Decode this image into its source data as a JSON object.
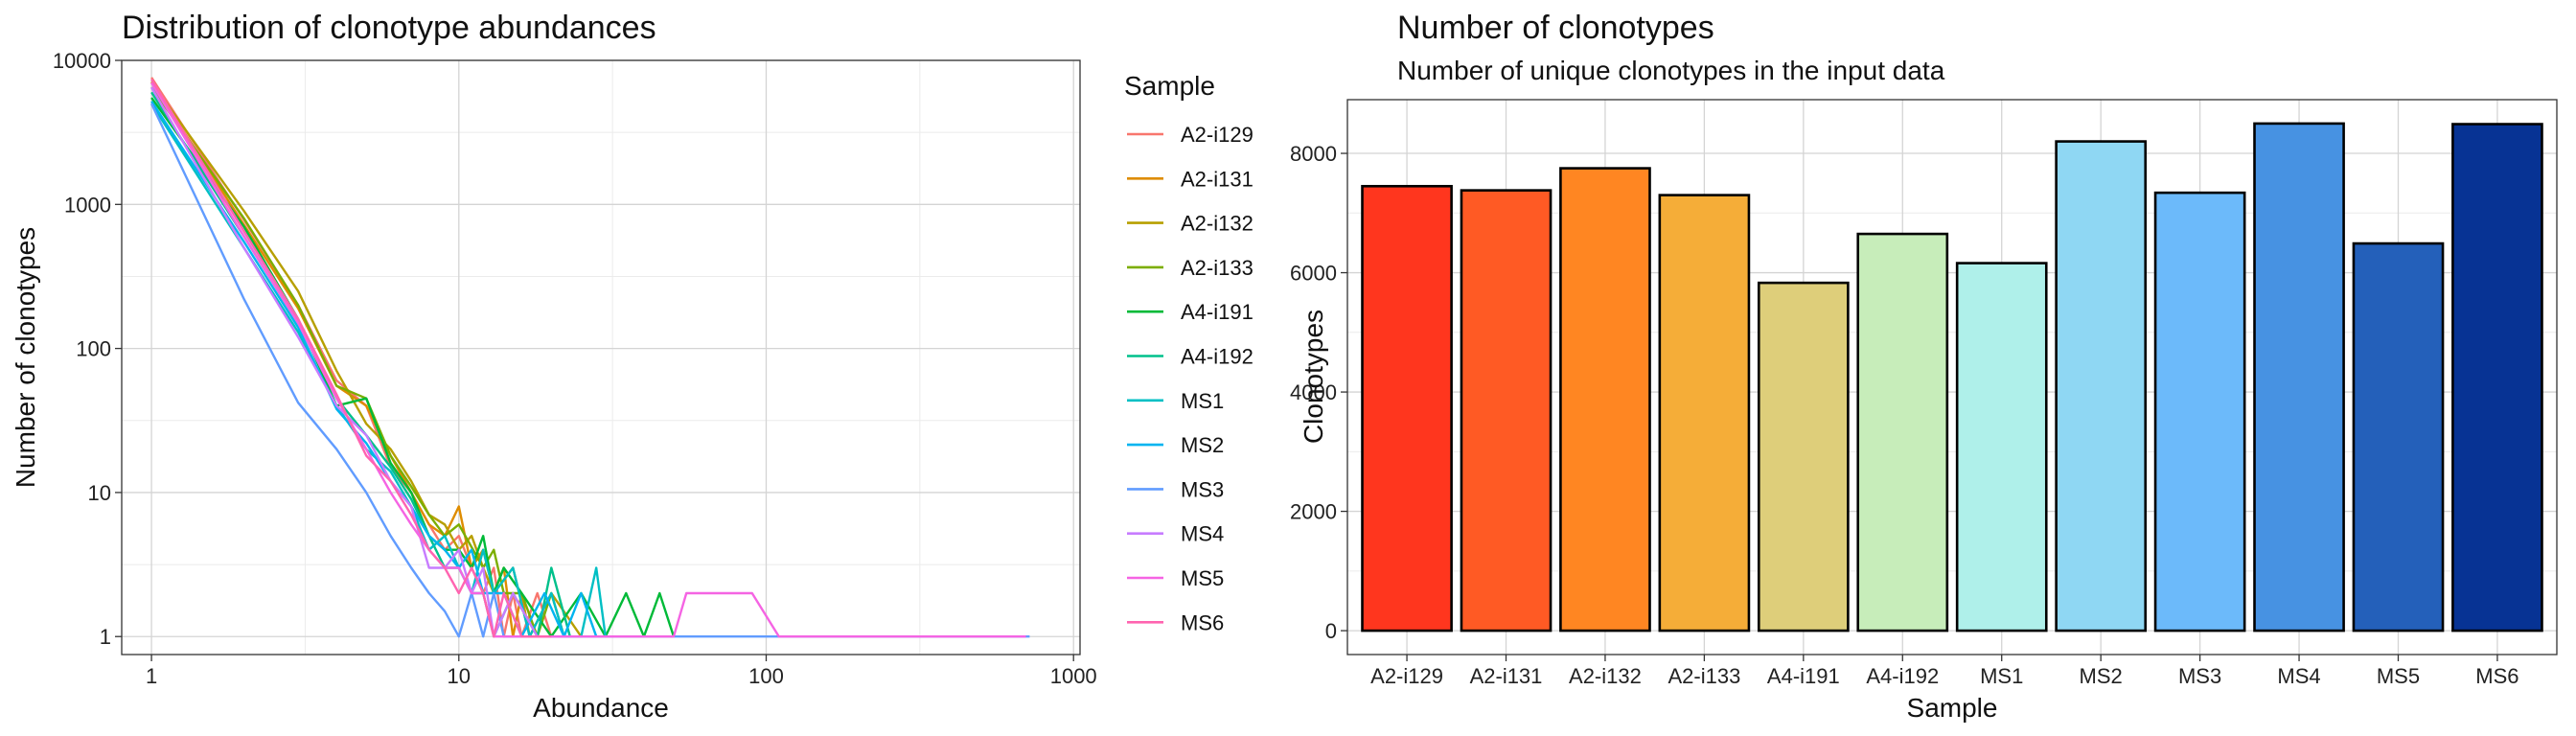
{
  "chart_data": [
    {
      "type": "line",
      "title": "Distribution of clonotype abundances",
      "xlabel": "Abundance",
      "ylabel": "Number of clonotypes",
      "x_scale": "log10",
      "y_scale": "log10",
      "xlim": [
        0.8,
        1050
      ],
      "ylim": [
        0.75,
        10000
      ],
      "x_ticks": [
        "1",
        "10",
        "100",
        "1000"
      ],
      "y_ticks": [
        "1",
        "10",
        "100",
        "1000",
        "10000"
      ],
      "grid": true,
      "legend": {
        "title": "Sample",
        "position": "right"
      },
      "series": [
        {
          "name": "A2-i129",
          "color": "#F8766D",
          "points": [
            [
              1,
              7600
            ],
            [
              2,
              780
            ],
            [
              3,
              200
            ],
            [
              4,
              60
            ],
            [
              5,
              40
            ],
            [
              6,
              15
            ],
            [
              7,
              10
            ],
            [
              8,
              6
            ],
            [
              9,
              4
            ],
            [
              10,
              5
            ],
            [
              11,
              3
            ],
            [
              12,
              2
            ],
            [
              13,
              3
            ],
            [
              14,
              1
            ],
            [
              15,
              2
            ],
            [
              16,
              1
            ],
            [
              18,
              2
            ],
            [
              20,
              1
            ],
            [
              22,
              1
            ]
          ]
        },
        {
          "name": "A2-i131",
          "color": "#DE8C00",
          "points": [
            [
              1,
              7100
            ],
            [
              2,
              720
            ],
            [
              3,
              190
            ],
            [
              4,
              55
            ],
            [
              5,
              40
            ],
            [
              6,
              18
            ],
            [
              7,
              10
            ],
            [
              8,
              6
            ],
            [
              9,
              5
            ],
            [
              10,
              8
            ],
            [
              11,
              3
            ],
            [
              12,
              4
            ],
            [
              13,
              2
            ],
            [
              14,
              3
            ],
            [
              15,
              1
            ],
            [
              16,
              2
            ],
            [
              17,
              1
            ],
            [
              18,
              1
            ]
          ]
        },
        {
          "name": "A2-i132",
          "color": "#B79F00",
          "points": [
            [
              1,
              7000
            ],
            [
              2,
              900
            ],
            [
              3,
              250
            ],
            [
              4,
              70
            ],
            [
              5,
              30
            ],
            [
              6,
              20
            ],
            [
              7,
              12
            ],
            [
              8,
              7
            ],
            [
              9,
              6
            ],
            [
              10,
              4
            ],
            [
              11,
              5
            ],
            [
              12,
              3
            ],
            [
              13,
              2
            ],
            [
              15,
              3
            ],
            [
              17,
              1
            ],
            [
              20,
              2
            ],
            [
              25,
              1
            ]
          ]
        },
        {
          "name": "A2-i133",
          "color": "#7CAE00",
          "points": [
            [
              1,
              6500
            ],
            [
              2,
              800
            ],
            [
              3,
              200
            ],
            [
              4,
              55
            ],
            [
              5,
              45
            ],
            [
              6,
              18
            ],
            [
              7,
              11
            ],
            [
              8,
              7
            ],
            [
              9,
              5
            ],
            [
              10,
              6
            ],
            [
              12,
              3
            ],
            [
              13,
              4
            ],
            [
              14,
              2
            ],
            [
              16,
              2
            ],
            [
              18,
              1
            ],
            [
              20,
              2
            ],
            [
              22,
              1
            ]
          ]
        },
        {
          "name": "A4-i191",
          "color": "#00BA38",
          "points": [
            [
              1,
              5500
            ],
            [
              2,
              700
            ],
            [
              3,
              160
            ],
            [
              4,
              40
            ],
            [
              5,
              45
            ],
            [
              6,
              16
            ],
            [
              7,
              10
            ],
            [
              8,
              5
            ],
            [
              9,
              4
            ],
            [
              10,
              4
            ],
            [
              11,
              3
            ],
            [
              12,
              5
            ],
            [
              13,
              2
            ],
            [
              14,
              3
            ],
            [
              16,
              2
            ],
            [
              20,
              1
            ],
            [
              25,
              2
            ],
            [
              30,
              1
            ],
            [
              35,
              2
            ],
            [
              40,
              1
            ],
            [
              45,
              2
            ],
            [
              50,
              1
            ]
          ]
        },
        {
          "name": "A4-i192",
          "color": "#00C08B",
          "points": [
            [
              1,
              6000
            ],
            [
              2,
              600
            ],
            [
              3,
              150
            ],
            [
              4,
              45
            ],
            [
              5,
              25
            ],
            [
              6,
              15
            ],
            [
              7,
              9
            ],
            [
              8,
              5
            ],
            [
              9,
              3
            ],
            [
              10,
              3
            ],
            [
              11,
              2
            ],
            [
              12,
              2
            ],
            [
              13,
              1
            ],
            [
              15,
              2
            ],
            [
              18,
              1
            ],
            [
              20,
              3
            ],
            [
              23,
              1
            ]
          ]
        },
        {
          "name": "MS1",
          "color": "#00BFC4",
          "points": [
            [
              1,
              5000
            ],
            [
              2,
              500
            ],
            [
              3,
              130
            ],
            [
              4,
              40
            ],
            [
              5,
              20
            ],
            [
              6,
              14
            ],
            [
              7,
              8
            ],
            [
              8,
              4
            ],
            [
              9,
              5
            ],
            [
              10,
              3
            ],
            [
              11,
              2
            ],
            [
              12,
              4
            ],
            [
              13,
              2
            ],
            [
              15,
              3
            ],
            [
              17,
              1
            ],
            [
              20,
              2
            ],
            [
              22,
              1
            ],
            [
              25,
              1
            ],
            [
              28,
              3
            ],
            [
              30,
              1
            ]
          ]
        },
        {
          "name": "MS2",
          "color": "#00B4F0",
          "points": [
            [
              1,
              5200
            ],
            [
              2,
              550
            ],
            [
              3,
              140
            ],
            [
              4,
              38
            ],
            [
              5,
              22
            ],
            [
              6,
              12
            ],
            [
              7,
              8
            ],
            [
              8,
              5
            ],
            [
              9,
              4
            ],
            [
              10,
              3
            ],
            [
              11,
              4
            ],
            [
              12,
              2
            ],
            [
              14,
              2
            ],
            [
              16,
              1
            ],
            [
              19,
              2
            ],
            [
              22,
              1
            ],
            [
              25,
              2
            ],
            [
              28,
              1
            ]
          ]
        },
        {
          "name": "MS3",
          "color": "#619CFF",
          "points": [
            [
              1,
              5000
            ],
            [
              2,
              220
            ],
            [
              3,
              42
            ],
            [
              4,
              20
            ],
            [
              5,
              10
            ],
            [
              6,
              5
            ],
            [
              7,
              3
            ],
            [
              8,
              2
            ],
            [
              9,
              1.5
            ],
            [
              10,
              1
            ],
            [
              11,
              2
            ],
            [
              12,
              1
            ],
            [
              13,
              2
            ],
            [
              14,
              1
            ],
            [
              18,
              1
            ],
            [
              25,
              1
            ],
            [
              50,
              1
            ],
            [
              110,
              1
            ],
            [
              250,
              1
            ],
            [
              720,
              1
            ]
          ]
        },
        {
          "name": "MS4",
          "color": "#C77CFF",
          "points": [
            [
              1,
              6500
            ],
            [
              2,
              500
            ],
            [
              3,
              120
            ],
            [
              4,
              40
            ],
            [
              5,
              25
            ],
            [
              6,
              12
            ],
            [
              7,
              8
            ],
            [
              8,
              3
            ],
            [
              9,
              3
            ],
            [
              10,
              4
            ],
            [
              11,
              2
            ],
            [
              12,
              3
            ],
            [
              13,
              1
            ],
            [
              15,
              2
            ],
            [
              18,
              1
            ],
            [
              22,
              1
            ]
          ]
        },
        {
          "name": "MS5",
          "color": "#F564E3",
          "points": [
            [
              1,
              7000
            ],
            [
              2,
              600
            ],
            [
              3,
              150
            ],
            [
              4,
              45
            ],
            [
              5,
              20
            ],
            [
              6,
              10
            ],
            [
              7,
              6
            ],
            [
              8,
              4
            ],
            [
              9,
              3
            ],
            [
              10,
              3
            ],
            [
              11,
              2
            ],
            [
              12,
              2
            ],
            [
              13,
              1
            ],
            [
              15,
              1
            ],
            [
              20,
              1
            ],
            [
              30,
              1
            ],
            [
              50,
              1
            ],
            [
              55,
              2
            ],
            [
              90,
              2
            ],
            [
              110,
              1
            ],
            [
              250,
              1
            ],
            [
              700,
              1
            ]
          ]
        },
        {
          "name": "MS6",
          "color": "#FF64B0",
          "points": [
            [
              1,
              7400
            ],
            [
              2,
              650
            ],
            [
              3,
              160
            ],
            [
              4,
              48
            ],
            [
              5,
              18
            ],
            [
              6,
              12
            ],
            [
              7,
              7
            ],
            [
              8,
              4
            ],
            [
              9,
              3
            ],
            [
              10,
              2
            ],
            [
              11,
              3
            ],
            [
              12,
              2
            ],
            [
              13,
              1
            ],
            [
              14,
              2
            ],
            [
              16,
              1
            ],
            [
              20,
              1
            ]
          ]
        }
      ]
    },
    {
      "type": "bar",
      "title": "Number of clonotypes",
      "subtitle": "Number of unique clonotypes in the input data",
      "xlabel": "Sample",
      "ylabel": "Clonotypes",
      "ylim": [
        -400,
        8900
      ],
      "y_ticks": [
        0,
        2000,
        4000,
        6000,
        8000
      ],
      "grid": true,
      "categories": [
        "A2-i129",
        "A2-i131",
        "A2-i132",
        "A2-i133",
        "A4-i191",
        "A4-i192",
        "MS1",
        "MS2",
        "MS3",
        "MS4",
        "MS5",
        "MS6"
      ],
      "values": [
        7450,
        7380,
        7750,
        7300,
        5830,
        6650,
        6160,
        8200,
        7340,
        8500,
        6490,
        8490
      ],
      "colors": [
        "#FF361E",
        "#FF5A24",
        "#FF8622",
        "#F5AD38",
        "#DECE7A",
        "#C7EDBA",
        "#AFF0EA",
        "#8FD7F3",
        "#6CBAFA",
        "#4792E2",
        "#2460BA",
        "#073394"
      ]
    }
  ]
}
